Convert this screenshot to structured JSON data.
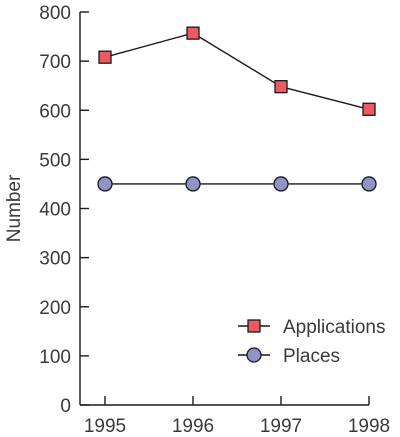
{
  "chart_data": {
    "type": "line",
    "title": "",
    "xlabel": "",
    "ylabel": "Number",
    "categories": [
      "1995",
      "1996",
      "1997",
      "1998"
    ],
    "ylim": [
      0,
      800
    ],
    "yticks": [
      0,
      100,
      200,
      300,
      400,
      500,
      600,
      700,
      800
    ],
    "grid": false,
    "legend_position": "bottom-right",
    "series": [
      {
        "name": "Applications",
        "values": [
          708,
          757,
          648,
          602
        ],
        "marker": "square",
        "marker_color": "#ec5b62"
      },
      {
        "name": "Places",
        "values": [
          450,
          450,
          450,
          450
        ],
        "marker": "circle",
        "marker_color": "#9291c8"
      }
    ],
    "line_color": "#1a1a1a",
    "axis_color": "#1a1a1a"
  }
}
